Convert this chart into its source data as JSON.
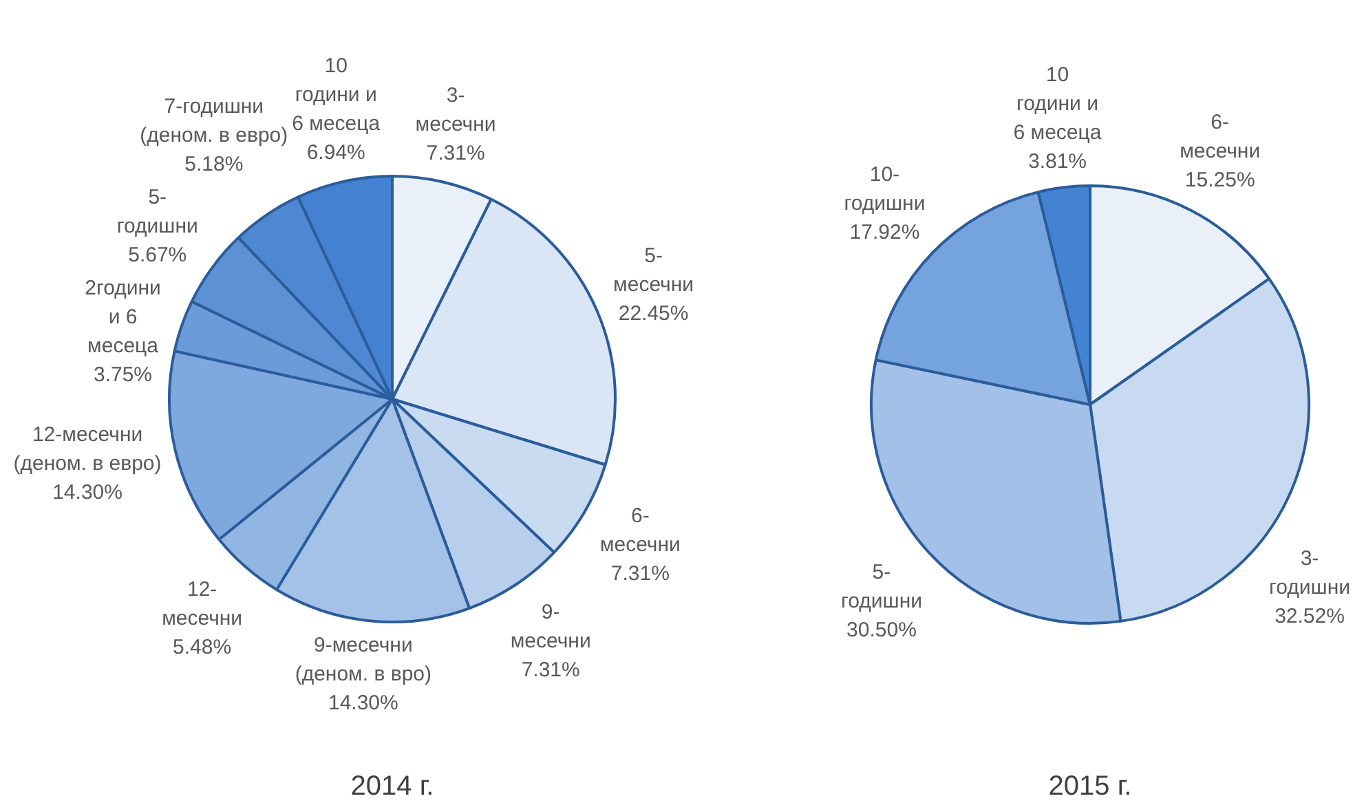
{
  "chart_data": [
    {
      "type": "pie",
      "title": "2014 г.",
      "categories": [
        "3-месечни",
        "5-месечни",
        "6-месечни",
        "9-месечни",
        "9-месечни (деном. в вро)",
        "12-месечни",
        "12-месечни (деном. в евро)",
        "2години и 6 месеца",
        "5-годишни",
        "7-годишни (деном. в евро)",
        "10 години и 6 месеца"
      ],
      "values": [
        7.31,
        22.45,
        7.31,
        7.31,
        14.3,
        5.48,
        14.3,
        3.75,
        5.67,
        5.18,
        6.94
      ],
      "colors": [
        "#e9f0f9",
        "#dae6f5",
        "#c9dbf1",
        "#b7cfec",
        "#a4c2e8",
        "#92b6e3",
        "#7fa8de",
        "#6c9bd9",
        "#5c91d6",
        "#4e88d3",
        "#4481d0"
      ],
      "value_labels": [
        "7.31%",
        "22.45%",
        "7.31%",
        "7.31%",
        "14.30%",
        "5.48%",
        "14.30%",
        "3.75%",
        "5.67%",
        "5.18%",
        "6.94%"
      ]
    },
    {
      "type": "pie",
      "title": "2015 г.",
      "categories": [
        "6-месечни",
        "3-годишни",
        "5-годишни",
        "10-годишни",
        "10 години и 6 месеца"
      ],
      "values": [
        15.25,
        32.52,
        30.5,
        17.92,
        3.81
      ],
      "colors": [
        "#e9f0f9",
        "#c8daf1",
        "#a3c1e8",
        "#75a3dd",
        "#4483d1"
      ],
      "value_labels": [
        "15.25%",
        "32.52%",
        "30.50%",
        "17.92%",
        "3.81%"
      ]
    }
  ]
}
